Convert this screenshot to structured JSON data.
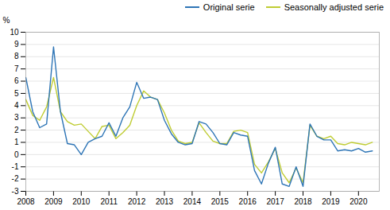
{
  "chart_data": {
    "type": "line",
    "ylabel": "%",
    "x": [
      2008,
      2008.25,
      2008.5,
      2008.75,
      2009,
      2009.25,
      2009.5,
      2009.75,
      2010,
      2010.25,
      2010.5,
      2010.75,
      2011,
      2011.25,
      2011.5,
      2011.75,
      2012,
      2012.25,
      2012.5,
      2012.75,
      2013,
      2013.25,
      2013.5,
      2013.75,
      2014,
      2014.25,
      2014.5,
      2014.75,
      2015,
      2015.25,
      2015.5,
      2015.75,
      2016,
      2016.25,
      2016.5,
      2016.75,
      2017,
      2017.25,
      2017.5,
      2017.75,
      2018,
      2018.25,
      2018.5,
      2018.75,
      2019,
      2019.25,
      2019.5,
      2019.75,
      2020,
      2020.25,
      2020.5
    ],
    "series": [
      {
        "name": "Original serie",
        "color": "#2E75B6",
        "values": [
          6.3,
          3.5,
          2.2,
          2.5,
          8.8,
          3.5,
          0.9,
          0.8,
          0.0,
          1.0,
          1.3,
          1.5,
          2.6,
          1.5,
          3.0,
          3.9,
          5.9,
          4.6,
          4.7,
          4.5,
          2.8,
          1.7,
          1.0,
          0.8,
          0.9,
          2.7,
          2.5,
          1.8,
          0.9,
          0.8,
          1.8,
          1.6,
          1.5,
          -1.3,
          -2.4,
          -0.7,
          0.6,
          -2.4,
          -2.6,
          -1.0,
          -2.6,
          2.5,
          1.5,
          1.2,
          1.2,
          0.3,
          0.4,
          0.3,
          0.5,
          0.2,
          0.3
        ]
      },
      {
        "name": "Seasonally adjusted serie",
        "color": "#BFCC33",
        "values": [
          4.5,
          3.2,
          2.8,
          3.9,
          6.3,
          3.5,
          2.7,
          2.4,
          2.5,
          1.9,
          1.3,
          2.3,
          2.4,
          1.3,
          1.8,
          2.4,
          4.0,
          5.2,
          4.7,
          4.5,
          3.4,
          2.0,
          1.1,
          0.9,
          1.0,
          2.6,
          1.8,
          1.1,
          0.9,
          0.9,
          1.9,
          2.0,
          1.8,
          -0.8,
          -1.5,
          -0.6,
          0.5,
          -1.5,
          -2.3,
          -1.1,
          -2.3,
          2.4,
          1.5,
          1.3,
          1.5,
          0.9,
          0.8,
          1.0,
          0.9,
          0.8,
          1.0
        ]
      }
    ],
    "xlim": [
      2008.0,
      2020.75
    ],
    "xticks": [
      2008,
      2009,
      2010,
      2011,
      2012,
      2013,
      2014,
      2015,
      2016,
      2017,
      2018,
      2019,
      2020
    ],
    "ylim": [
      -3,
      10
    ],
    "yticks": [
      -3,
      -2,
      -1,
      0,
      1,
      2,
      3,
      4,
      5,
      6,
      7,
      8,
      9,
      10
    ],
    "grid": true,
    "legend": "upper right"
  }
}
